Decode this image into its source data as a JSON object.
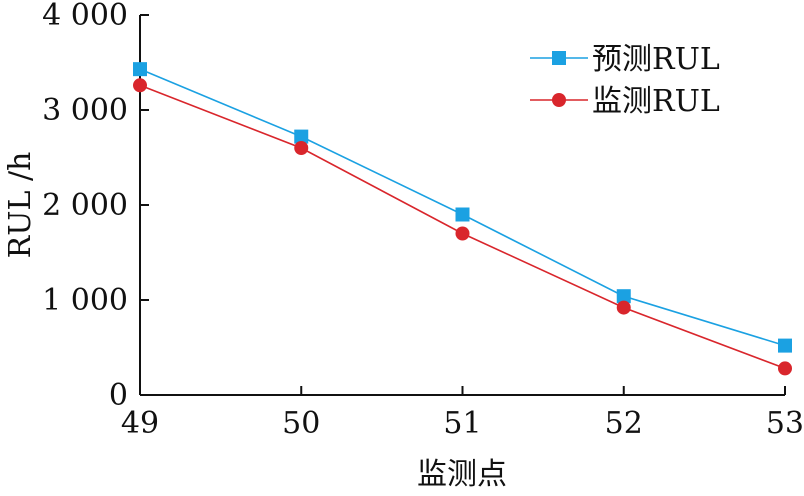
{
  "chart_data": {
    "type": "line",
    "title": "",
    "xlabel": "监测点",
    "ylabel": "RUL /h",
    "x": [
      49,
      50,
      51,
      52,
      53
    ],
    "xticks": [
      "49",
      "50",
      "51",
      "52",
      "53"
    ],
    "yticks": [
      {
        "value": 0,
        "label": "0"
      },
      {
        "value": 1000,
        "label": "1 000"
      },
      {
        "value": 2000,
        "label": "2 000"
      },
      {
        "value": 3000,
        "label": "3 000"
      },
      {
        "value": 4000,
        "label": "4 000"
      }
    ],
    "xlim": [
      49,
      53
    ],
    "ylim": [
      0,
      4000
    ],
    "grid": false,
    "legend_position": "top-right",
    "series": [
      {
        "name": "预测RUL",
        "values": [
          3430,
          2720,
          1900,
          1040,
          520
        ],
        "color": "#1ba1e2",
        "marker": "square"
      },
      {
        "name": "监测RUL",
        "values": [
          3260,
          2600,
          1700,
          920,
          280
        ],
        "color": "#d9262c",
        "marker": "circle"
      }
    ]
  }
}
